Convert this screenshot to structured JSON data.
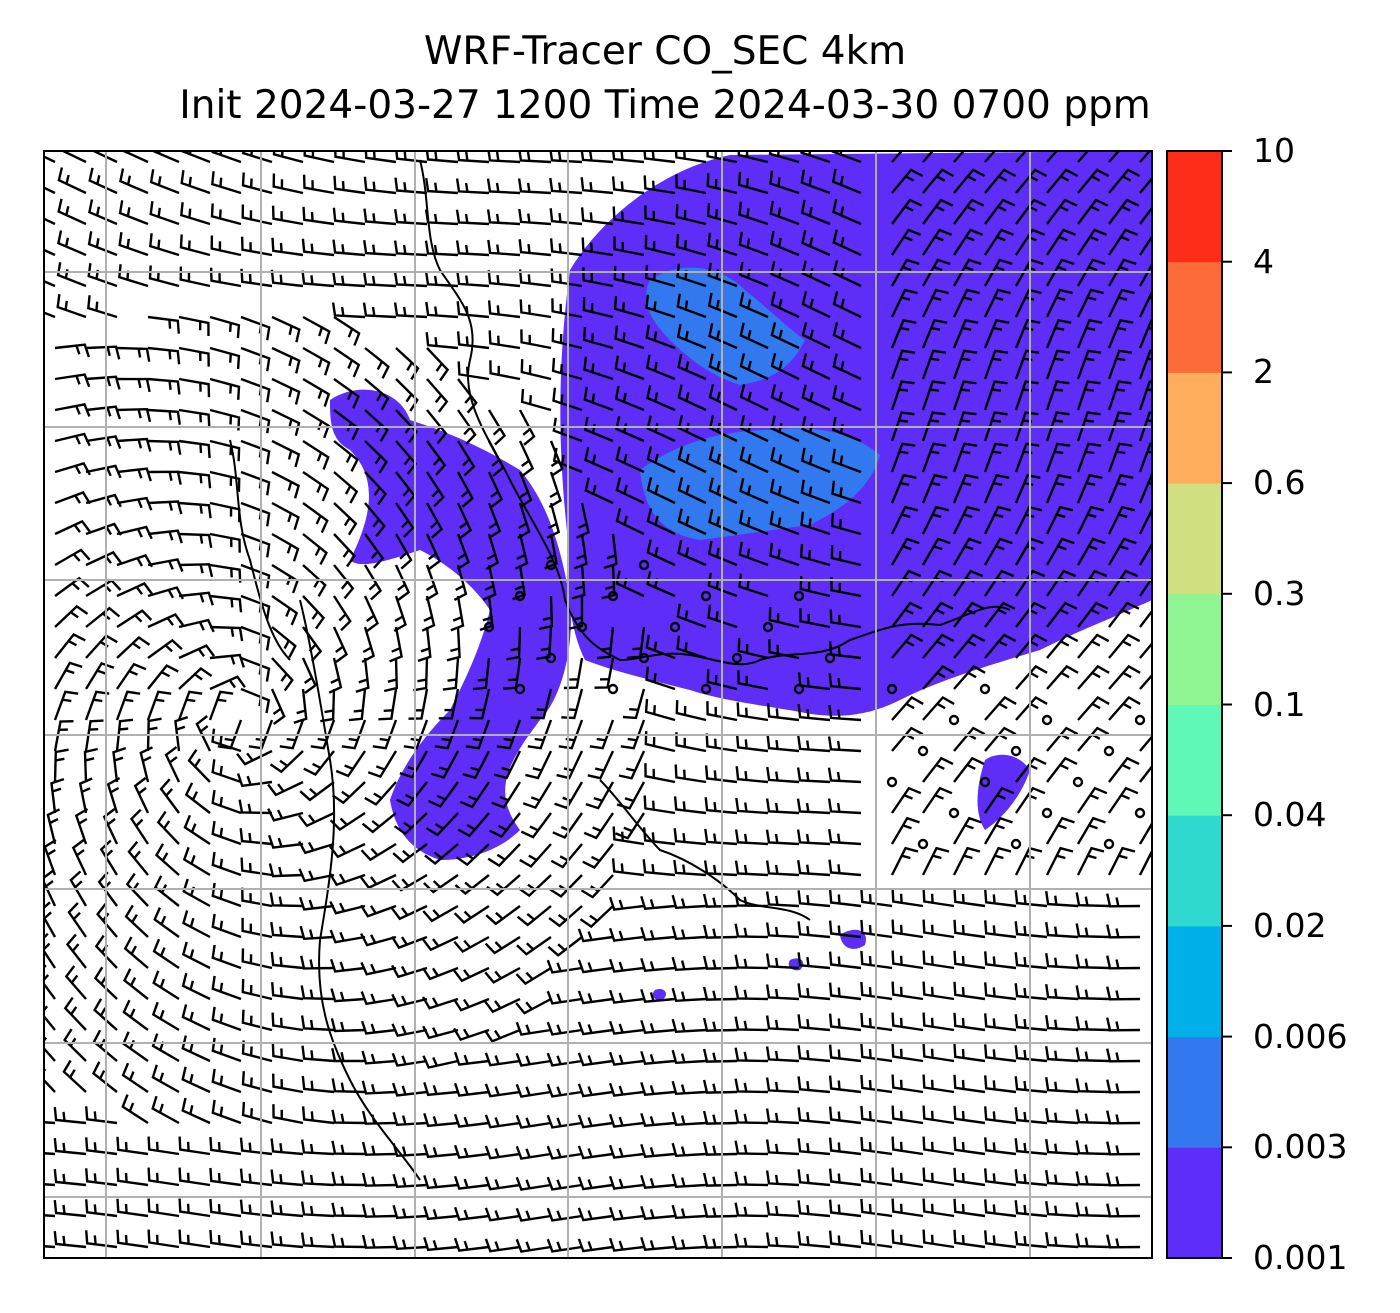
{
  "title_line1": "WRF-Tracer CO_SEC 4km",
  "title_line2": "Init 2024-03-27 1200 Time 2024-03-30 0700 ppm",
  "colorbar": {
    "levels": [
      "0.001",
      "0.003",
      "0.006",
      "0.02",
      "0.04",
      "0.1",
      "0.3",
      "0.6",
      "2",
      "4",
      "10"
    ],
    "colors": [
      "#5e2df7",
      "#3279ef",
      "#00b0e8",
      "#2fd9d0",
      "#60f8b6",
      "#8ff592",
      "#d0e080",
      "#fdad5c",
      "#fd6c38",
      "#fd2d1a"
    ]
  },
  "map": {
    "field": "CO_SEC tracer concentration (ppm)",
    "overlay": "wind barbs",
    "gridlines": true,
    "coastlines": true
  }
}
